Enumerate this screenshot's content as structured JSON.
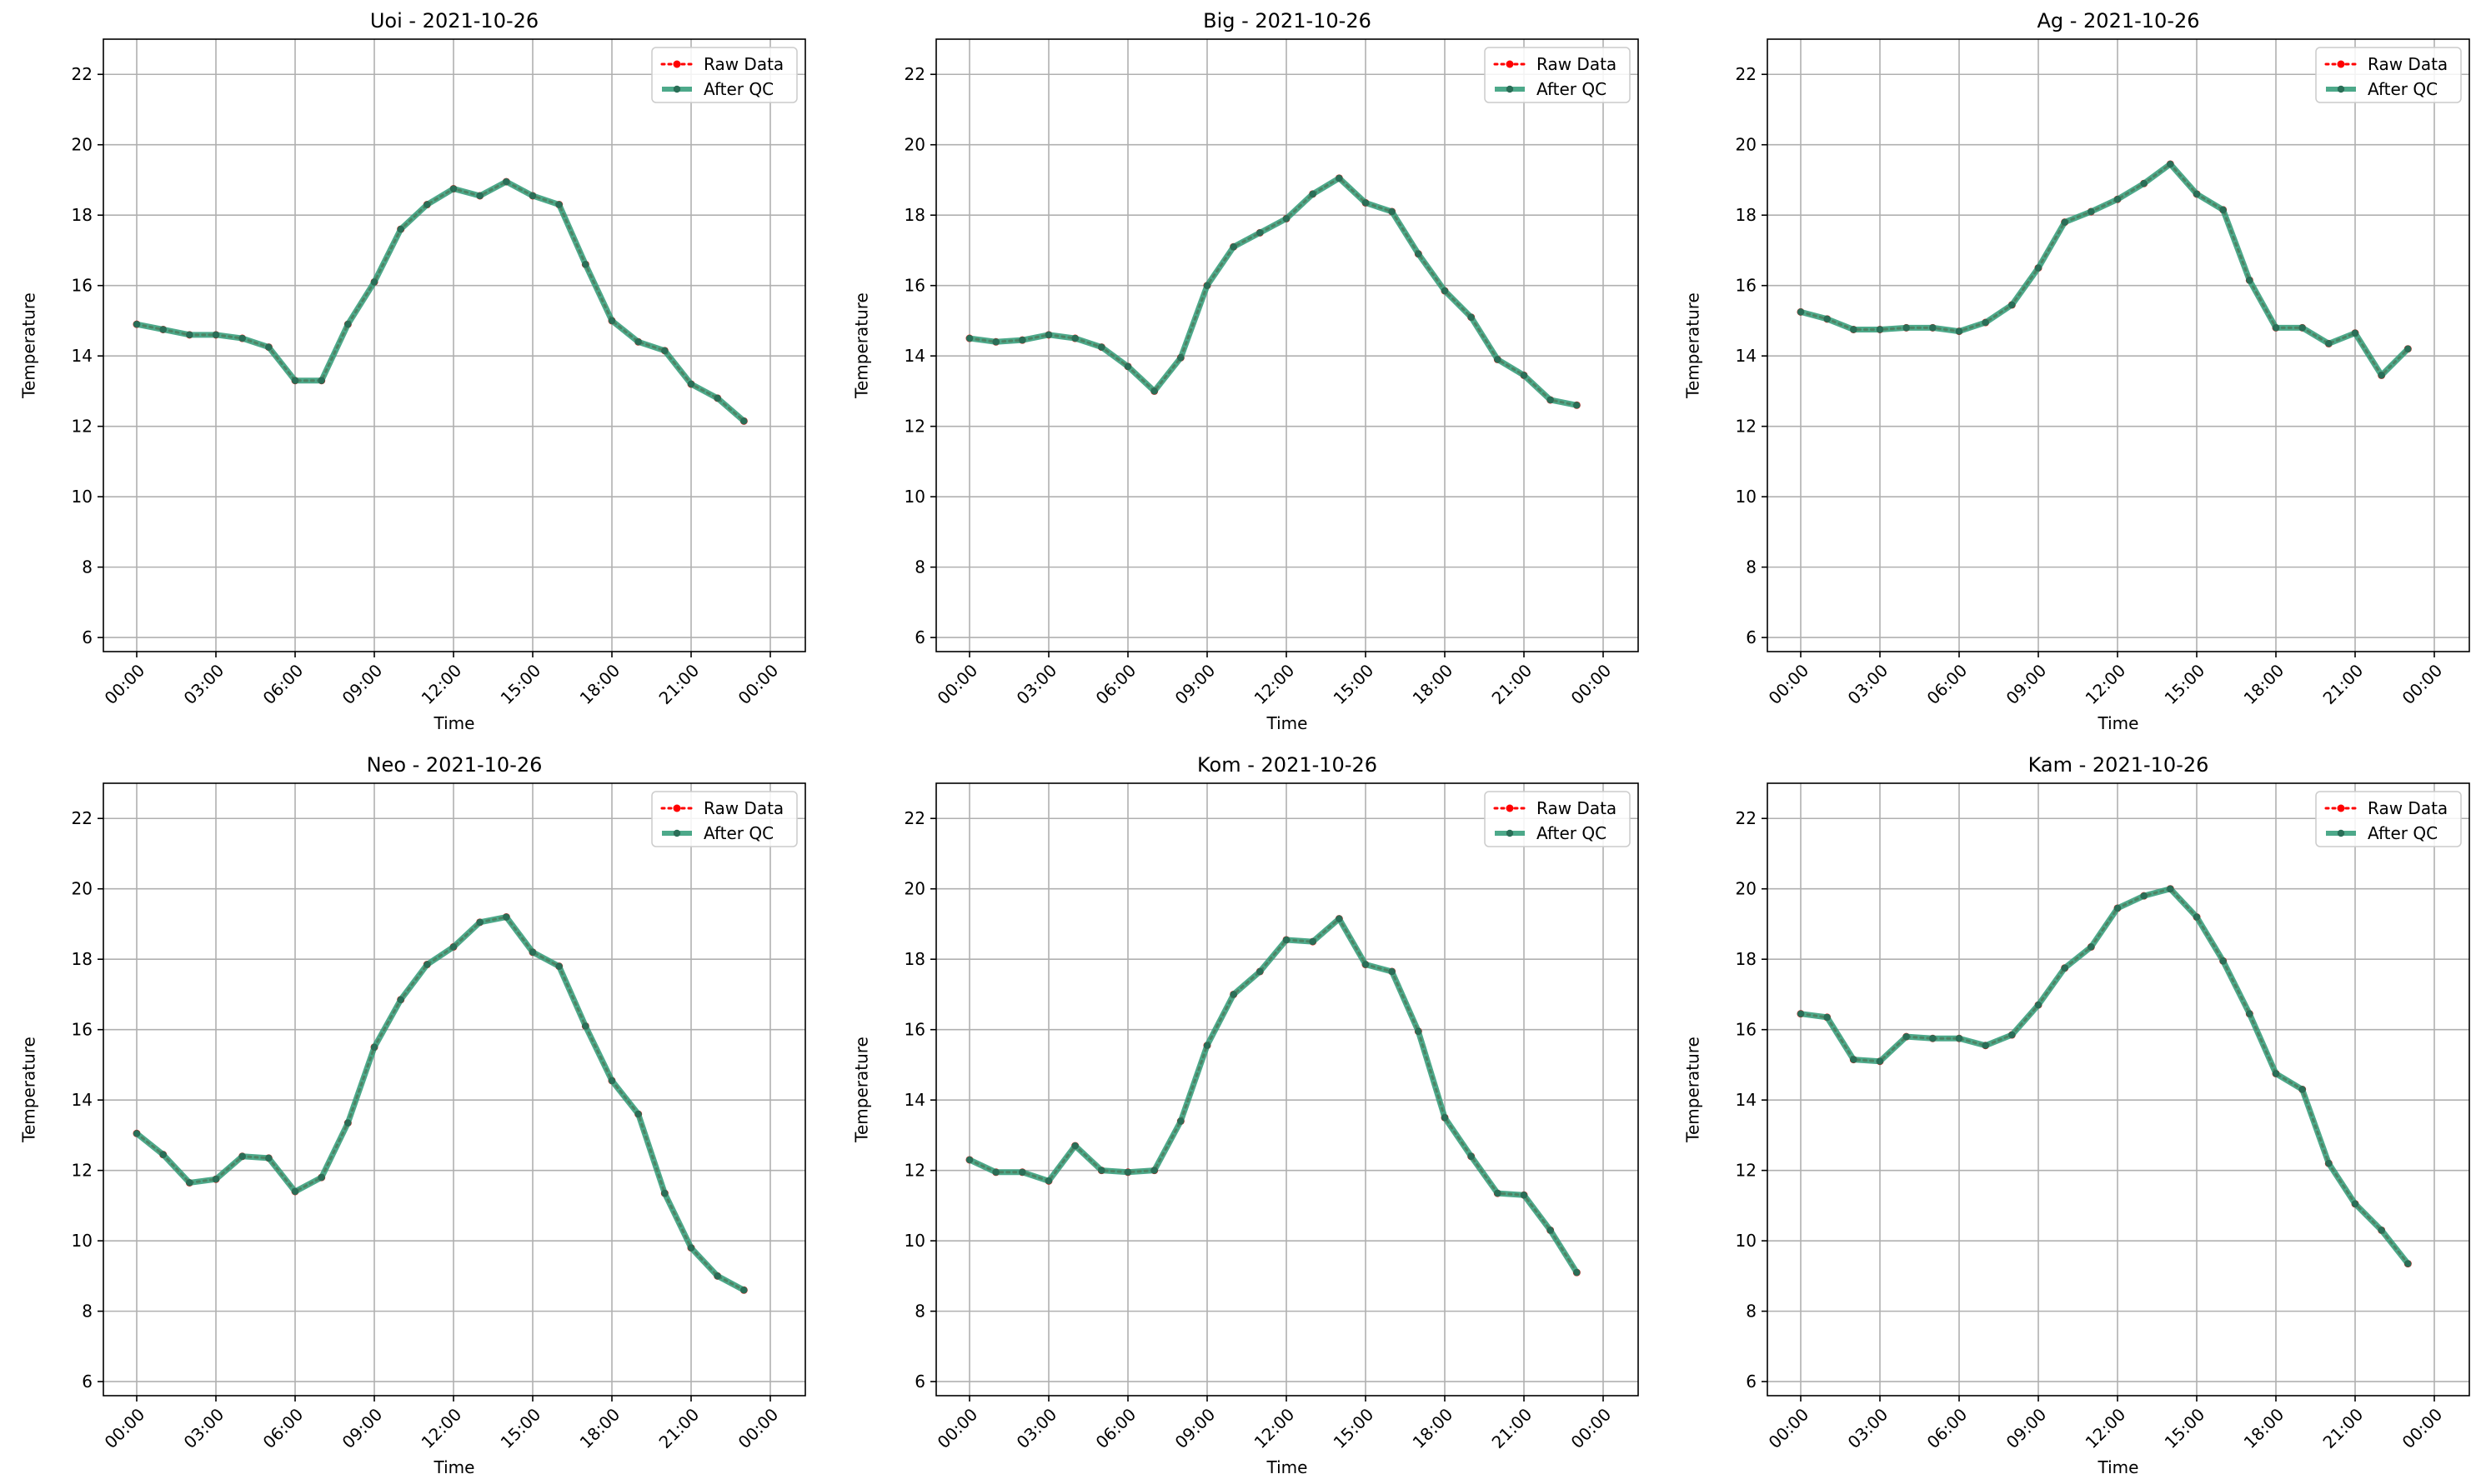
{
  "legend_labels": {
    "raw": "Raw Data",
    "qc": "After QC"
  },
  "colors": {
    "raw": "#ff0000",
    "qc": "#2e9a75",
    "qc_marker": "#2a6e57",
    "grid": "#b0b0b0",
    "axis": "#000000",
    "text": "#000000"
  },
  "chart_data": [
    {
      "type": "line",
      "title": "Uoi - 2021-10-26",
      "xlabel": "Time",
      "ylabel": "Temperature",
      "ylim": [
        5.6,
        23
      ],
      "xlim": [
        "2021-10-26 00:00",
        "2021-10-27 00:00"
      ],
      "yticks": [
        "6",
        "8",
        "10",
        "12",
        "14",
        "16",
        "18",
        "20",
        "22"
      ],
      "xticks": [
        "00:00",
        "03:00",
        "06:00",
        "09:00",
        "12:00",
        "15:00",
        "18:00",
        "21:00",
        "00:00"
      ],
      "grid": true,
      "legend": "top-right",
      "x": [
        "00:00",
        "01:00",
        "02:00",
        "03:00",
        "04:00",
        "05:00",
        "06:00",
        "07:00",
        "08:00",
        "09:00",
        "10:00",
        "11:00",
        "12:00",
        "13:00",
        "14:00",
        "15:00",
        "16:00",
        "17:00",
        "18:00",
        "19:00",
        "20:00",
        "21:00",
        "22:00",
        "23:00"
      ],
      "series": [
        {
          "name": "Raw Data",
          "values": [
            14.9,
            14.75,
            14.6,
            14.6,
            14.5,
            14.25,
            13.3,
            13.3,
            14.9,
            16.1,
            17.6,
            18.3,
            18.75,
            18.55,
            18.95,
            18.55,
            18.3,
            16.6,
            15.0,
            14.4,
            14.15,
            13.2,
            12.8,
            12.15
          ]
        },
        {
          "name": "After QC",
          "values": [
            14.9,
            14.75,
            14.6,
            14.6,
            14.5,
            14.25,
            13.3,
            13.3,
            14.9,
            16.1,
            17.6,
            18.3,
            18.75,
            18.55,
            18.95,
            18.55,
            18.3,
            16.6,
            15.0,
            14.4,
            14.15,
            13.2,
            12.8,
            12.15
          ]
        }
      ]
    },
    {
      "type": "line",
      "title": "Big - 2021-10-26",
      "xlabel": "Time",
      "ylabel": "Temperature",
      "ylim": [
        5.6,
        23
      ],
      "xlim": [
        "2021-10-26 00:00",
        "2021-10-27 00:00"
      ],
      "yticks": [
        "6",
        "8",
        "10",
        "12",
        "14",
        "16",
        "18",
        "20",
        "22"
      ],
      "xticks": [
        "00:00",
        "03:00",
        "06:00",
        "09:00",
        "12:00",
        "15:00",
        "18:00",
        "21:00",
        "00:00"
      ],
      "grid": true,
      "legend": "top-right",
      "x": [
        "00:00",
        "01:00",
        "02:00",
        "03:00",
        "04:00",
        "05:00",
        "06:00",
        "07:00",
        "08:00",
        "09:00",
        "10:00",
        "11:00",
        "12:00",
        "13:00",
        "14:00",
        "15:00",
        "16:00",
        "17:00",
        "18:00",
        "19:00",
        "20:00",
        "21:00",
        "22:00",
        "23:00"
      ],
      "series": [
        {
          "name": "Raw Data",
          "values": [
            14.5,
            14.4,
            14.45,
            14.6,
            14.5,
            14.25,
            13.7,
            13.0,
            13.95,
            16.0,
            17.1,
            17.5,
            17.9,
            18.6,
            19.05,
            18.35,
            18.1,
            16.9,
            15.85,
            15.1,
            13.9,
            13.45,
            12.75,
            12.6
          ]
        },
        {
          "name": "After QC",
          "values": [
            14.5,
            14.4,
            14.45,
            14.6,
            14.5,
            14.25,
            13.7,
            13.0,
            13.95,
            16.0,
            17.1,
            17.5,
            17.9,
            18.6,
            19.05,
            18.35,
            18.1,
            16.9,
            15.85,
            15.1,
            13.9,
            13.45,
            12.75,
            12.6
          ]
        }
      ]
    },
    {
      "type": "line",
      "title": "Ag - 2021-10-26",
      "xlabel": "Time",
      "ylabel": "Temperature",
      "ylim": [
        5.6,
        23
      ],
      "xlim": [
        "2021-10-26 00:00",
        "2021-10-27 00:00"
      ],
      "yticks": [
        "6",
        "8",
        "10",
        "12",
        "14",
        "16",
        "18",
        "20",
        "22"
      ],
      "xticks": [
        "00:00",
        "03:00",
        "06:00",
        "09:00",
        "12:00",
        "15:00",
        "18:00",
        "21:00",
        "00:00"
      ],
      "grid": true,
      "legend": "top-right",
      "x": [
        "00:00",
        "01:00",
        "02:00",
        "03:00",
        "04:00",
        "05:00",
        "06:00",
        "07:00",
        "08:00",
        "09:00",
        "10:00",
        "11:00",
        "12:00",
        "13:00",
        "14:00",
        "15:00",
        "16:00",
        "17:00",
        "18:00",
        "19:00",
        "20:00",
        "21:00",
        "22:00",
        "23:00"
      ],
      "series": [
        {
          "name": "Raw Data",
          "values": [
            15.25,
            15.05,
            14.75,
            14.75,
            14.8,
            14.8,
            14.7,
            14.95,
            15.45,
            16.5,
            17.8,
            18.1,
            18.45,
            18.9,
            19.45,
            18.6,
            18.15,
            16.15,
            14.8,
            14.8,
            14.35,
            14.65,
            13.45,
            14.2
          ]
        },
        {
          "name": "After QC",
          "values": [
            15.25,
            15.05,
            14.75,
            14.75,
            14.8,
            14.8,
            14.7,
            14.95,
            15.45,
            16.5,
            17.8,
            18.1,
            18.45,
            18.9,
            19.45,
            18.6,
            18.15,
            16.15,
            14.8,
            14.8,
            14.35,
            14.65,
            13.45,
            14.2
          ]
        }
      ]
    },
    {
      "type": "line",
      "title": "Neo - 2021-10-26",
      "xlabel": "Time",
      "ylabel": "Temperature",
      "ylim": [
        5.6,
        23
      ],
      "xlim": [
        "2021-10-26 00:00",
        "2021-10-27 00:00"
      ],
      "yticks": [
        "6",
        "8",
        "10",
        "12",
        "14",
        "16",
        "18",
        "20",
        "22"
      ],
      "xticks": [
        "00:00",
        "03:00",
        "06:00",
        "09:00",
        "12:00",
        "15:00",
        "18:00",
        "21:00",
        "00:00"
      ],
      "grid": true,
      "legend": "top-right",
      "x": [
        "00:00",
        "01:00",
        "02:00",
        "03:00",
        "04:00",
        "05:00",
        "06:00",
        "07:00",
        "08:00",
        "09:00",
        "10:00",
        "11:00",
        "12:00",
        "13:00",
        "14:00",
        "15:00",
        "16:00",
        "17:00",
        "18:00",
        "19:00",
        "20:00",
        "21:00",
        "22:00",
        "23:00"
      ],
      "series": [
        {
          "name": "Raw Data",
          "values": [
            13.05,
            12.45,
            11.65,
            11.75,
            12.4,
            12.35,
            11.4,
            11.8,
            13.35,
            15.5,
            16.85,
            17.85,
            18.35,
            19.05,
            19.2,
            18.2,
            17.8,
            16.1,
            14.55,
            13.6,
            11.35,
            9.8,
            9.0,
            8.6
          ]
        },
        {
          "name": "After QC",
          "values": [
            13.05,
            12.45,
            11.65,
            11.75,
            12.4,
            12.35,
            11.4,
            11.8,
            13.35,
            15.5,
            16.85,
            17.85,
            18.35,
            19.05,
            19.2,
            18.2,
            17.8,
            16.1,
            14.55,
            13.6,
            11.35,
            9.8,
            9.0,
            8.6
          ]
        }
      ]
    },
    {
      "type": "line",
      "title": "Kom - 2021-10-26",
      "xlabel": "Time",
      "ylabel": "Temperature",
      "ylim": [
        5.6,
        23
      ],
      "xlim": [
        "2021-10-26 00:00",
        "2021-10-27 00:00"
      ],
      "yticks": [
        "6",
        "8",
        "10",
        "12",
        "14",
        "16",
        "18",
        "20",
        "22"
      ],
      "xticks": [
        "00:00",
        "03:00",
        "06:00",
        "09:00",
        "12:00",
        "15:00",
        "18:00",
        "21:00",
        "00:00"
      ],
      "grid": true,
      "legend": "top-right",
      "x": [
        "00:00",
        "01:00",
        "02:00",
        "03:00",
        "04:00",
        "05:00",
        "06:00",
        "07:00",
        "08:00",
        "09:00",
        "10:00",
        "11:00",
        "12:00",
        "13:00",
        "14:00",
        "15:00",
        "16:00",
        "17:00",
        "18:00",
        "19:00",
        "20:00",
        "21:00",
        "22:00",
        "23:00"
      ],
      "series": [
        {
          "name": "Raw Data",
          "values": [
            12.3,
            11.95,
            11.95,
            11.7,
            12.7,
            12.0,
            11.95,
            12.0,
            13.4,
            15.55,
            17.0,
            17.65,
            18.55,
            18.5,
            19.15,
            17.85,
            17.65,
            15.95,
            13.5,
            12.4,
            11.35,
            11.3,
            10.3,
            9.1
          ]
        },
        {
          "name": "After QC",
          "values": [
            12.3,
            11.95,
            11.95,
            11.7,
            12.7,
            12.0,
            11.95,
            12.0,
            13.4,
            15.55,
            17.0,
            17.65,
            18.55,
            18.5,
            19.15,
            17.85,
            17.65,
            15.95,
            13.5,
            12.4,
            11.35,
            11.3,
            10.3,
            9.1
          ]
        }
      ]
    },
    {
      "type": "line",
      "title": "Kam - 2021-10-26",
      "xlabel": "Time",
      "ylabel": "Temperature",
      "ylim": [
        5.6,
        23
      ],
      "xlim": [
        "2021-10-26 00:00",
        "2021-10-27 00:00"
      ],
      "yticks": [
        "6",
        "8",
        "10",
        "12",
        "14",
        "16",
        "18",
        "20",
        "22"
      ],
      "xticks": [
        "00:00",
        "03:00",
        "06:00",
        "09:00",
        "12:00",
        "15:00",
        "18:00",
        "21:00",
        "00:00"
      ],
      "grid": true,
      "legend": "top-right",
      "x": [
        "00:00",
        "01:00",
        "02:00",
        "03:00",
        "04:00",
        "05:00",
        "06:00",
        "07:00",
        "08:00",
        "09:00",
        "10:00",
        "11:00",
        "12:00",
        "13:00",
        "14:00",
        "15:00",
        "16:00",
        "17:00",
        "18:00",
        "19:00",
        "20:00",
        "21:00",
        "22:00",
        "23:00"
      ],
      "series": [
        {
          "name": "Raw Data",
          "values": [
            16.45,
            16.35,
            15.15,
            15.1,
            15.8,
            15.75,
            15.75,
            15.55,
            15.85,
            16.7,
            17.75,
            18.35,
            19.45,
            19.8,
            20.0,
            19.2,
            17.95,
            16.45,
            14.75,
            14.3,
            12.2,
            11.05,
            10.3,
            9.35
          ]
        },
        {
          "name": "After QC",
          "values": [
            16.45,
            16.35,
            15.15,
            15.1,
            15.8,
            15.75,
            15.75,
            15.55,
            15.85,
            16.7,
            17.75,
            18.35,
            19.45,
            19.8,
            20.0,
            19.2,
            17.95,
            16.45,
            14.75,
            14.3,
            12.2,
            11.05,
            10.3,
            9.35
          ]
        }
      ]
    }
  ]
}
